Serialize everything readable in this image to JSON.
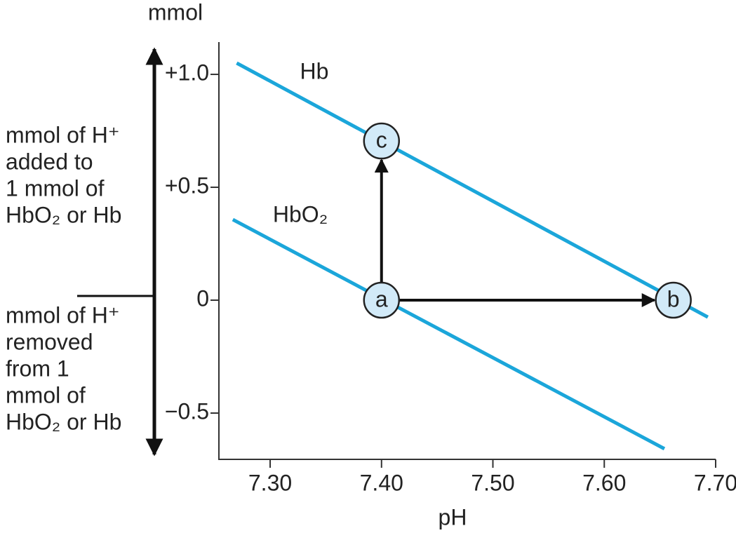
{
  "chart_data": {
    "type": "line",
    "ylabel": "mmol",
    "xlabel": "pH",
    "xlim": [
      7.254,
      7.7
    ],
    "ylim": [
      -0.705,
      1.143
    ],
    "xticks": [
      {
        "value": 7.3,
        "label": "7.30"
      },
      {
        "value": 7.4,
        "label": "7.40"
      },
      {
        "value": 7.5,
        "label": "7.50"
      },
      {
        "value": 7.6,
        "label": "7.60"
      },
      {
        "value": 7.7,
        "label": "7.70"
      }
    ],
    "yticks": [
      {
        "value": -0.5,
        "label": "−0.5"
      },
      0,
      {
        "value": 0.5,
        "label": "+0.5"
      },
      {
        "value": 1.0,
        "label": "+1.0"
      }
    ],
    "series": [
      {
        "name": "Hb",
        "color": "#1ba6da",
        "x": [
          7.27,
          7.693
        ],
        "y": [
          1.05,
          -0.075
        ]
      },
      {
        "name": "HbO₂",
        "color": "#1ba6da",
        "x": [
          7.2665,
          7.654
        ],
        "y": [
          0.357,
          -0.658
        ]
      }
    ],
    "points": [
      {
        "label": "a",
        "x": 7.4,
        "y": 0
      },
      {
        "label": "b",
        "x": 7.662,
        "y": 0
      },
      {
        "label": "c",
        "x": 7.4,
        "y": 0.705
      }
    ],
    "annotations": {
      "added": [
        "mmol of H⁺",
        "added to",
        "1 mmol of",
        "HbO₂ or Hb"
      ],
      "removed": [
        "mmol of H⁺",
        "removed",
        "from 1",
        "mmol of",
        "HbO₂ or Hb"
      ]
    }
  }
}
